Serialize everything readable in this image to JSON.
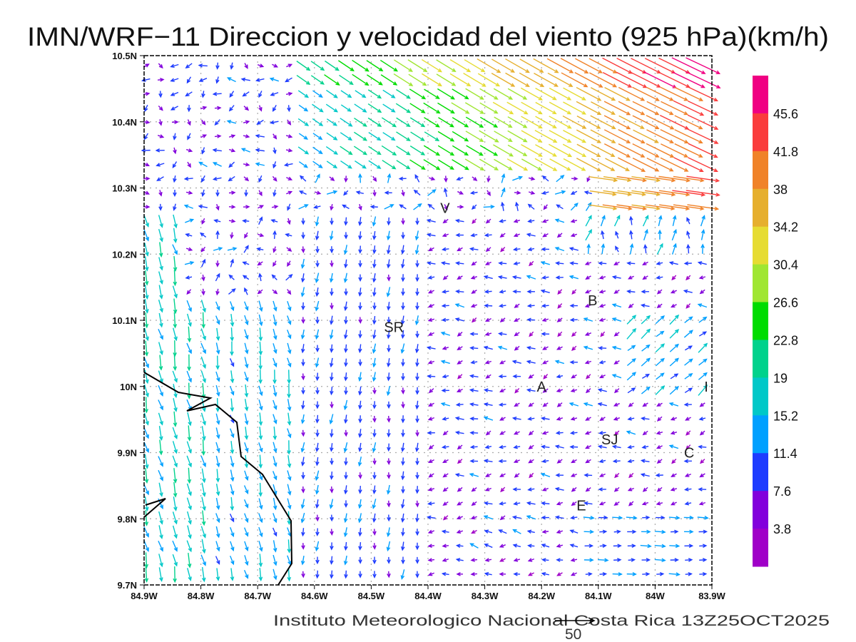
{
  "title": "IMN/WRF−11 Direccion y velocidad del viento (925 hPa)(km/h)",
  "credit": "Instituto Meteorologico Nacional Costa Rica  13Z25OCT2025",
  "reference_vector": {
    "label": "50",
    "value": 50,
    "units": "km/h"
  },
  "axes": {
    "x_ticks": [
      "84.9W",
      "84.8W",
      "84.7W",
      "84.6W",
      "84.5W",
      "84.4W",
      "84.3W",
      "84.2W",
      "84.1W",
      "84W",
      "83.9W"
    ],
    "y_ticks": [
      "10.5N",
      "10.4N",
      "10.3N",
      "10.2N",
      "10.1N",
      "10N",
      "9.9N",
      "9.8N",
      "9.7N"
    ],
    "lon_range": [
      -84.9,
      -83.9
    ],
    "lat_range": [
      9.7,
      10.5
    ]
  },
  "colorbar": {
    "labels": [
      "3.8",
      "7.6",
      "11.4",
      "15.2",
      "19",
      "22.8",
      "26.6",
      "30.4",
      "34.2",
      "38",
      "41.8",
      "45.6"
    ],
    "colors": [
      "#a000c8",
      "#8200dc",
      "#1e3cff",
      "#00a0ff",
      "#00c8c8",
      "#00d28c",
      "#00dc00",
      "#a0e632",
      "#e6dc32",
      "#e6af2d",
      "#f08228",
      "#fa3c3c",
      "#f00082"
    ]
  },
  "places": [
    {
      "label": "V",
      "lon": -84.37,
      "lat": 10.27
    },
    {
      "label": "SR",
      "lon": -84.46,
      "lat": 10.09
    },
    {
      "label": "B",
      "lon": -84.11,
      "lat": 10.13
    },
    {
      "label": "A",
      "lon": -84.2,
      "lat": 10.0
    },
    {
      "label": "I",
      "lon": -83.91,
      "lat": 10.0
    },
    {
      "label": "SJ",
      "lon": -84.08,
      "lat": 9.92
    },
    {
      "label": "C",
      "lon": -83.94,
      "lat": 9.9
    },
    {
      "label": "E",
      "lon": -84.13,
      "lat": 9.82
    }
  ]
}
